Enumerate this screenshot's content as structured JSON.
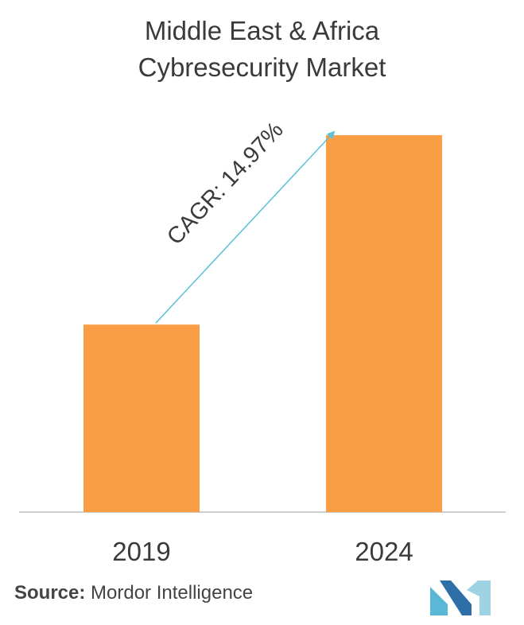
{
  "title_lines": [
    "Middle East & Africa",
    "Cybresecurity Market"
  ],
  "chart_data": {
    "type": "bar",
    "title": "Middle East & Africa Cybresecurity Market",
    "categories": [
      "2019",
      "2024"
    ],
    "values": [
      1.0,
      2.01
    ],
    "annotation": "CAGR: 14.97%",
    "colors": {
      "bar": "#F99E45",
      "arrow": "#5BC1D6",
      "axis": "#BDBDBD"
    },
    "grid": false,
    "legend": "none"
  },
  "source": {
    "label": "Source:",
    "text": "Mordor Intelligence"
  },
  "logo": {
    "colors": [
      "#5AB7D6",
      "#2E6FA8",
      "#9ED3E4"
    ]
  }
}
